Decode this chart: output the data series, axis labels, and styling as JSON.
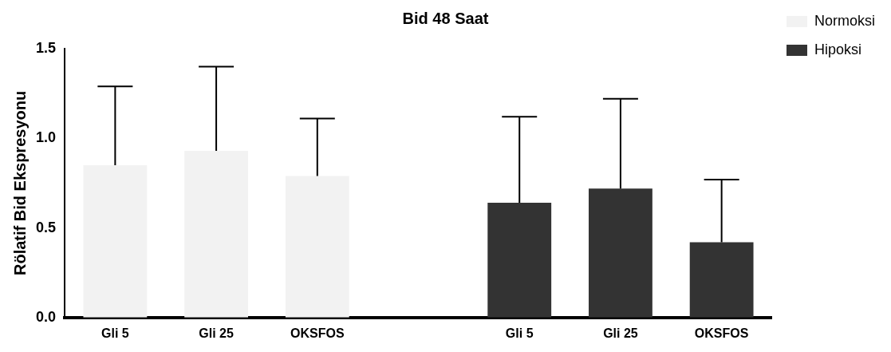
{
  "chart_data": {
    "type": "bar",
    "title": "Bid 48 Saat",
    "ylabel": "Rölatif Bid Ekspresyonu",
    "categories": [
      "Gli 5",
      "Gli 25",
      "OKSFOS",
      null,
      "Gli 5",
      "Gli 25",
      "OKSFOS"
    ],
    "series": [
      {
        "name": "Normoksi",
        "color": "#f2f2f2",
        "values": [
          0.85,
          0.93,
          0.79,
          null,
          null,
          null,
          null
        ],
        "errors": [
          [
            0.85,
            1.29
          ],
          [
            0.93,
            1.4
          ],
          [
            0.79,
            1.11
          ],
          null,
          null,
          null,
          null
        ]
      },
      {
        "name": "Hipoksi",
        "color": "#333333",
        "values": [
          null,
          null,
          null,
          null,
          0.64,
          0.72,
          0.42
        ],
        "errors": [
          null,
          null,
          null,
          null,
          [
            0.64,
            1.12
          ],
          [
            0.72,
            1.22
          ],
          [
            0.42,
            0.77
          ]
        ]
      }
    ],
    "ylim": [
      0,
      1.5
    ],
    "yticks": [
      {
        "value": 0,
        "label": "0.0"
      },
      {
        "value": 0.5,
        "label": "0.5"
      },
      {
        "value": 1,
        "label": "1.0"
      },
      {
        "value": 1.5,
        "label": "1.5"
      }
    ],
    "grid": false,
    "legend": "top right"
  }
}
